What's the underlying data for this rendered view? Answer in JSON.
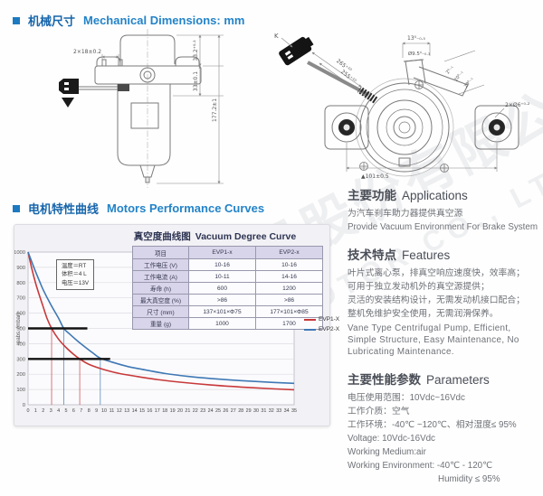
{
  "sections": {
    "mechanical": {
      "zh": "机械尺寸",
      "en": "Mechanical Dimensions: mm"
    },
    "curves": {
      "zh": "电机特性曲线",
      "en": "Motors Performance Curves"
    }
  },
  "watermark": {
    "zh": "雪利电机股份有限公司",
    "en": "XUELI MOTOR CO., LTD."
  },
  "drawing_left": {
    "dim_top": "2×18±0.2",
    "dim_h1": "33.2⁺⁰·¹",
    "dim_h2": "33±0.1",
    "dim_total": "177.2±1"
  },
  "drawing_right": {
    "k": "K",
    "dim_cable_outer": "265⁺¹⁰",
    "dim_cable_inner": "255⁺¹⁰",
    "dim_stub_len": "13⁰₋₀.₅",
    "dim_stub_dia": "Ø9.5⁰₋₀.₃",
    "dim_s1": "2⁰₋₁",
    "dim_s2": "20⁰₋₁",
    "dim_s3": "29⁰₋₁",
    "dim_holes": "2×Ø6⁺⁰·²",
    "dim_width": "▲101±0.5"
  },
  "chart_data": {
    "type": "line",
    "title_zh": "真空度曲线图",
    "title_en": "Vacuum Degree Curve",
    "xlabel": "",
    "ylabel": "pabs. (mbar)",
    "xlim": [
      0,
      35
    ],
    "ylim": [
      0,
      1000
    ],
    "x_ticks": [
      0,
      1,
      2,
      3,
      4,
      5,
      6,
      7,
      8,
      9,
      10,
      11,
      12,
      13,
      14,
      15,
      16,
      17,
      18,
      19,
      20,
      21,
      22,
      23,
      24,
      25,
      26,
      27,
      28,
      29,
      30,
      31,
      32,
      33,
      34,
      35
    ],
    "y_ticks": [
      0,
      100,
      200,
      300,
      400,
      500,
      600,
      700,
      800,
      900,
      1000
    ],
    "grid": "horizontal",
    "annotation": [
      "温度＝RT",
      "体积＝4 L",
      "电压＝13V"
    ],
    "series": [
      {
        "name": "EVP1-X",
        "color": "#c8393b",
        "points": [
          [
            0,
            1000
          ],
          [
            0.5,
            890
          ],
          [
            1,
            795
          ],
          [
            1.5,
            715
          ],
          [
            2,
            640
          ],
          [
            2.5,
            565
          ],
          [
            3.1,
            500
          ],
          [
            4,
            430
          ],
          [
            5,
            375
          ],
          [
            6,
            330
          ],
          [
            6.8,
            300
          ],
          [
            8,
            265
          ],
          [
            10,
            230
          ],
          [
            12,
            205
          ],
          [
            14,
            188
          ],
          [
            17,
            165
          ],
          [
            20,
            148
          ],
          [
            24,
            130
          ],
          [
            28,
            116
          ],
          [
            32,
            105
          ],
          [
            35,
            98
          ]
        ]
      },
      {
        "name": "EVP2-X",
        "color": "#3f78b5",
        "points": [
          [
            0,
            1000
          ],
          [
            0.5,
            935
          ],
          [
            1,
            870
          ],
          [
            1.5,
            810
          ],
          [
            2,
            752
          ],
          [
            3,
            655
          ],
          [
            4,
            568
          ],
          [
            4.7,
            500
          ],
          [
            5.5,
            462
          ],
          [
            6.5,
            418
          ],
          [
            7.5,
            378
          ],
          [
            8.5,
            340
          ],
          [
            9.5,
            305
          ],
          [
            11,
            280
          ],
          [
            13,
            252
          ],
          [
            15,
            232
          ],
          [
            18,
            205
          ],
          [
            21,
            186
          ],
          [
            24,
            172
          ],
          [
            28,
            158
          ],
          [
            32,
            147
          ],
          [
            35,
            140
          ]
        ]
      }
    ],
    "ref_lines_h": [
      {
        "y": 500,
        "x0": 0,
        "x1": 7.8
      },
      {
        "y": 300,
        "x0": 0,
        "x1": 10.8
      }
    ],
    "ref_lines_v": [
      {
        "x": 3.1,
        "y": 500,
        "color": "#c8393b"
      },
      {
        "x": 4.7,
        "y": 500,
        "color": "#3f78b5"
      },
      {
        "x": 6.8,
        "y": 300,
        "color": "#c8393b"
      },
      {
        "x": 9.5,
        "y": 300,
        "color": "#3f78b5"
      }
    ],
    "legend": [
      {
        "label": "EVP1-X",
        "color": "#c8393b"
      },
      {
        "label": "EVP2-X",
        "color": "#3f78b5"
      }
    ],
    "table": {
      "headers": [
        "项目",
        "EVP1-x",
        "EVP2-x"
      ],
      "rows": [
        [
          "工作电压 (V)",
          "10-16",
          "10-16"
        ],
        [
          "工作电流 (A)",
          "10-11",
          "14-16"
        ],
        [
          "寿命 (h)",
          "600",
          "1200"
        ],
        [
          "最大真空度 (%)",
          ">86",
          ">86"
        ],
        [
          "尺寸 (mm)",
          "137×101×Φ75",
          "177×101×Φ85"
        ],
        [
          "重量 (g)",
          "1000",
          "1700"
        ]
      ]
    }
  },
  "right_column": {
    "applications": {
      "title_zh": "主要功能",
      "title_en": "Applications",
      "lines": [
        "为汽车刹车助力器提供真空源",
        "Provide Vacuum Environment For Brake System"
      ]
    },
    "features": {
      "title_zh": "技术特点",
      "title_en": "Features",
      "zh_lines": [
        "叶片式离心泵，排真空响应速度快，效率高；",
        "可用于独立发动机外的真空源提供；",
        "灵活的安装结构设计，无需发动机接口配合；",
        "整机免维护安全使用，无需润滑保养。"
      ],
      "en_text": "Vane Type Centrifugal Pump, Efficient, Simple Structure, Easy Maintenance, No Lubricating Maintenance."
    },
    "parameters": {
      "title_zh": "主要性能参数",
      "title_en": "Parameters",
      "lines": [
        "电压使用范围：10Vdc~16Vdc",
        "工作介质：空气",
        "工作环境：-40℃ ~120℃、相对湿度≤ 95%",
        "Voltage: 10Vdc-16Vdc",
        "Working Medium:air",
        "Working Environment: -40℃ - 120℃",
        "Humidity ≤ 95%"
      ]
    }
  }
}
